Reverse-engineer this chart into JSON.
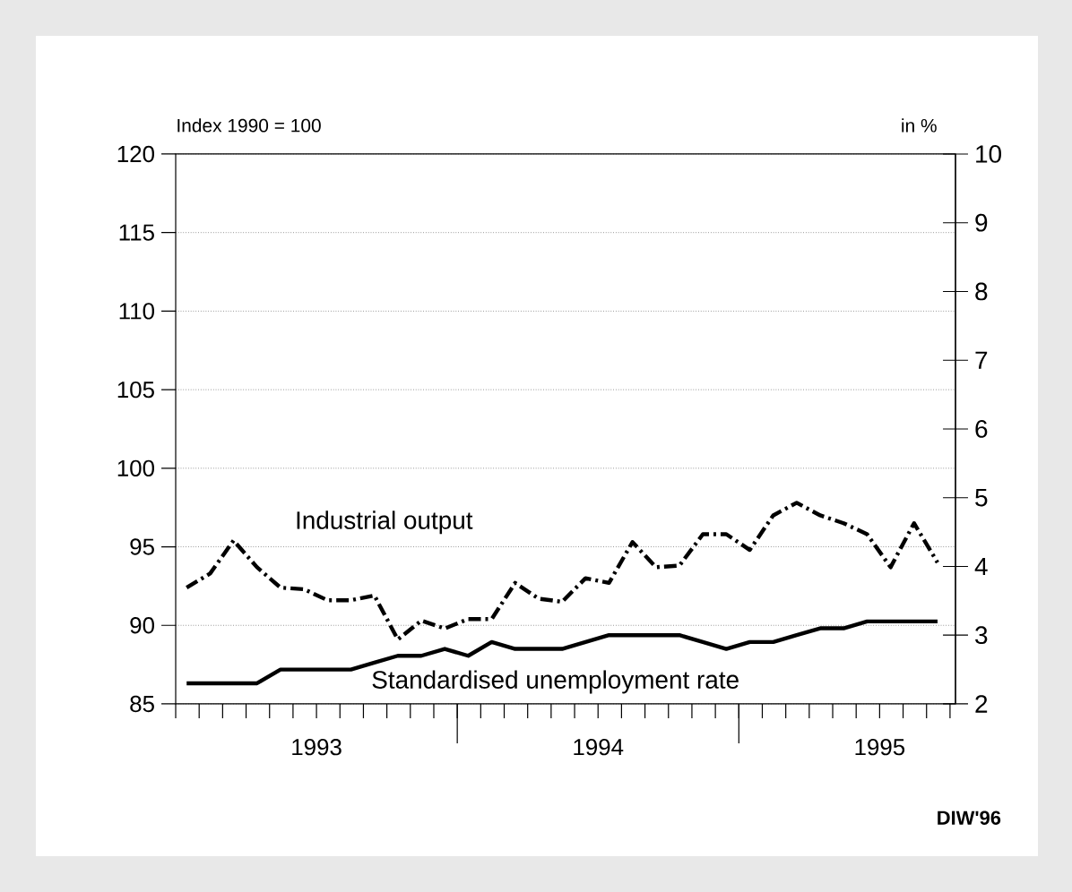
{
  "chart_data": {
    "type": "line",
    "ylabel": "Index 1990 = 100",
    "y2label": "in %",
    "x": [
      "1993-01-15",
      "1993-02-15",
      "1993-03-15",
      "1993-04-15",
      "1993-05-15",
      "1993-06-15",
      "1993-07-15",
      "1993-08-15",
      "1993-09-15",
      "1993-10-15",
      "1993-11-15",
      "1993-12-15",
      "1994-01-15",
      "1994-02-15",
      "1994-03-15",
      "1994-04-15",
      "1994-05-15",
      "1994-06-15",
      "1994-07-15",
      "1994-08-15",
      "1994-09-15",
      "1994-10-15",
      "1994-11-15",
      "1994-12-15",
      "1995-01-15",
      "1995-02-15",
      "1995-03-15",
      "1995-04-15",
      "1995-05-15",
      "1995-06-15",
      "1995-07-15",
      "1995-08-15",
      "1995-09-15"
    ],
    "series": [
      {
        "name": "Industrial output",
        "color": "#000000",
        "line_style": "dashdot",
        "values": [
          92.4,
          93.3,
          95.4,
          93.7,
          92.4,
          92.3,
          91.6,
          91.6,
          91.9,
          89.1,
          90.3,
          89.8,
          90.4,
          90.4,
          92.7,
          91.7,
          91.5,
          93.0,
          92.7,
          95.3,
          93.7,
          93.8,
          95.8,
          95.8,
          94.8,
          97.0,
          97.8,
          97.0,
          96.5,
          95.8,
          93.7,
          96.5,
          94.0
        ]
      },
      {
        "name": "Standardised unemployment rate",
        "color": "#000000",
        "line_style": "solid",
        "axis": "y2",
        "values": [
          2.3,
          2.3,
          2.3,
          2.3,
          2.5,
          2.5,
          2.5,
          2.5,
          2.6,
          2.7,
          2.7,
          2.8,
          2.7,
          2.9,
          2.8,
          2.8,
          2.8,
          2.9,
          3.0,
          3.0,
          3.0,
          3.0,
          2.9,
          2.8,
          2.9,
          2.9,
          3.0,
          3.1,
          3.1,
          3.2,
          3.2,
          3.2,
          3.2
        ]
      }
    ],
    "xlim": [
      "1993-01-01",
      "1995-10-08"
    ],
    "xticks": [
      {
        "value": "1993-07-01",
        "label": "1993"
      },
      {
        "value": "1994-07-01",
        "label": "1994"
      },
      {
        "value": "1995-07-01",
        "label": "1995"
      },
      {
        "value": "1994-01-01",
        "label": null
      },
      {
        "value": "1995-01-01",
        "label": null
      }
    ],
    "ylim": [
      85,
      120
    ],
    "yticks": [
      85,
      90,
      95,
      100,
      105,
      110,
      115,
      120
    ],
    "y2lim": [
      2,
      10
    ],
    "y2ticks": [
      2,
      3,
      4,
      5,
      6,
      7,
      8,
      9,
      10
    ],
    "grid": "y",
    "annotations": [
      "DIW'96"
    ]
  }
}
